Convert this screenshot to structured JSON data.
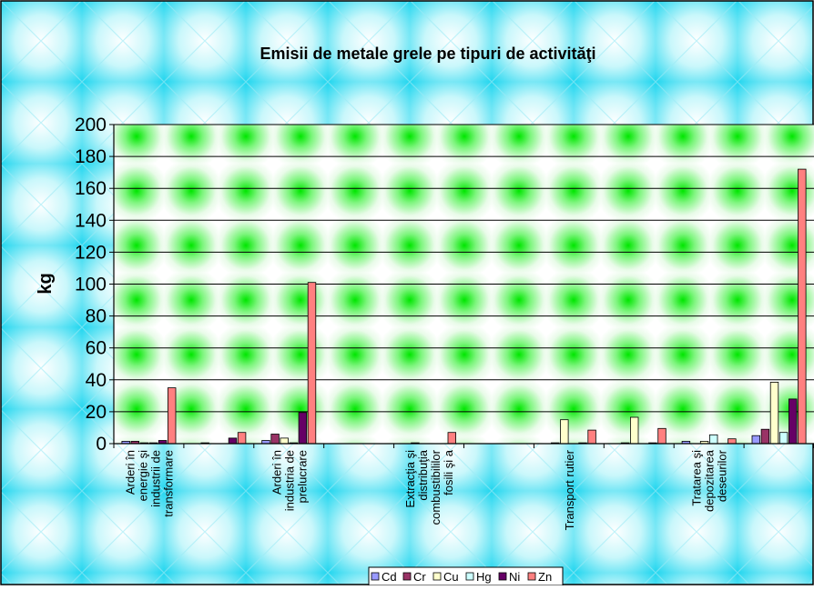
{
  "chart_data": {
    "type": "bar",
    "title": "Emisii de metale grele pe tipuri de activităţi",
    "xlabel": "",
    "ylabel": "kg",
    "ylim": [
      0,
      200
    ],
    "yticks": [
      0,
      20,
      40,
      60,
      80,
      100,
      120,
      140,
      160,
      180,
      200
    ],
    "grid": true,
    "legend_position": "bottom",
    "categories": [
      "Arderi în energie şi industrii de transformare",
      "",
      "Arderi în industria de prelucrare",
      "",
      "Extracţia şi distribuţia combustibililor fosili şi a",
      "",
      "Transport rutier",
      "",
      "Tratarea şi depozitarea deseurilor",
      ""
    ],
    "category_label_lines": [
      [
        "Arderi în",
        "energie şi",
        "industrii de",
        "transformare"
      ],
      [],
      [
        "Arderi în",
        "industria de",
        "prelucrare"
      ],
      [],
      [
        "Extracţia şi",
        "distribuţia",
        "combustibililor",
        "fosili şi a"
      ],
      [],
      [
        "Transport rutier"
      ],
      [],
      [
        "Tratarea şi",
        "depozitarea",
        "deseurilor"
      ],
      []
    ],
    "series": [
      {
        "name": "Cd",
        "color": "#9999FF",
        "values": [
          1.5,
          0,
          2,
          0,
          0,
          0,
          0,
          0,
          1.5,
          5
        ]
      },
      {
        "name": "Cr",
        "color": "#993366",
        "values": [
          1.5,
          0.5,
          6,
          0,
          0.5,
          0,
          0.5,
          0.5,
          0,
          9
        ]
      },
      {
        "name": "Cu",
        "color": "#FFFFCC",
        "values": [
          0.5,
          0,
          3.5,
          0,
          0,
          0,
          15,
          16.5,
          1.5,
          38.5
        ]
      },
      {
        "name": "Hg",
        "color": "#CCFFFF",
        "values": [
          0.5,
          0,
          0.5,
          0,
          0,
          0,
          0,
          0,
          5.5,
          7
        ]
      },
      {
        "name": "Ni",
        "color": "#660066",
        "values": [
          2,
          3.5,
          19.5,
          0,
          0,
          0,
          0.5,
          0.5,
          0,
          28
        ]
      },
      {
        "name": "Zn",
        "color": "#FF8080",
        "values": [
          35,
          7,
          101,
          0,
          7,
          0,
          8.5,
          9.5,
          3,
          172
        ]
      }
    ]
  }
}
